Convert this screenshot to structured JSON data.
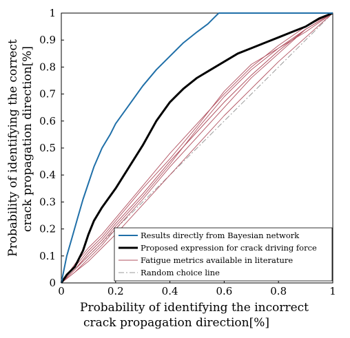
{
  "chart_data": {
    "type": "line",
    "title": "",
    "xlabel_lines": [
      "Probability of identifying the incorrect",
      "crack propagation direction[%]"
    ],
    "ylabel_lines": [
      "Probability of identifying the correct",
      "crack propagation direction[%]"
    ],
    "xlim": [
      0,
      1
    ],
    "ylim": [
      0,
      1
    ],
    "x_ticks": [
      "0",
      "0.2",
      "0.4",
      "0.6",
      "0.8",
      "1"
    ],
    "y_ticks": [
      "0",
      "0.1",
      "0.2",
      "0.3",
      "0.4",
      "0.5",
      "0.6",
      "0.7",
      "0.8",
      "0.9",
      "1"
    ],
    "grid": false,
    "legend_position": "bottom-right",
    "series": [
      {
        "name": "Results directly from Bayesian network",
        "color": "#1f6fa8",
        "style": "solid",
        "x": [
          0,
          0.01,
          0.02,
          0.04,
          0.06,
          0.08,
          0.1,
          0.12,
          0.15,
          0.18,
          0.2,
          0.25,
          0.3,
          0.35,
          0.4,
          0.45,
          0.5,
          0.54,
          0.56,
          0.58,
          0.6,
          0.8,
          1.0
        ],
        "y": [
          0,
          0.05,
          0.1,
          0.17,
          0.24,
          0.31,
          0.37,
          0.43,
          0.5,
          0.55,
          0.59,
          0.66,
          0.73,
          0.79,
          0.84,
          0.89,
          0.93,
          0.96,
          0.98,
          1.0,
          1.0,
          1.0,
          1.0
        ]
      },
      {
        "name": "Proposed expression for crack driving force",
        "color": "#000000",
        "style": "solid",
        "x": [
          0,
          0.02,
          0.05,
          0.08,
          0.1,
          0.12,
          0.15,
          0.2,
          0.25,
          0.3,
          0.35,
          0.4,
          0.45,
          0.5,
          0.55,
          0.6,
          0.65,
          0.7,
          0.75,
          0.8,
          0.85,
          0.9,
          0.95,
          1.0
        ],
        "y": [
          0,
          0.03,
          0.06,
          0.12,
          0.18,
          0.23,
          0.28,
          0.35,
          0.43,
          0.51,
          0.6,
          0.67,
          0.72,
          0.76,
          0.79,
          0.82,
          0.85,
          0.87,
          0.89,
          0.91,
          0.93,
          0.95,
          0.98,
          1.0
        ]
      },
      {
        "name": "Fatigue metrics available in literature",
        "color": "#b0505f",
        "style": "solid",
        "x": [
          0,
          0.05,
          0.1,
          0.15,
          0.2,
          0.3,
          0.4,
          0.5,
          0.6,
          0.7,
          0.8,
          0.9,
          1.0
        ],
        "y": [
          0,
          0.05,
          0.11,
          0.16,
          0.22,
          0.33,
          0.45,
          0.56,
          0.67,
          0.77,
          0.86,
          0.94,
          1.0
        ],
        "variants": [
          {
            "x": [
              0,
              0.05,
              0.1,
              0.15,
              0.2,
              0.3,
              0.4,
              0.5,
              0.6,
              0.7,
              0.8,
              0.9,
              1.0
            ],
            "y": [
              0,
              0.07,
              0.13,
              0.18,
              0.24,
              0.36,
              0.48,
              0.59,
              0.7,
              0.8,
              0.88,
              0.95,
              1.0
            ]
          },
          {
            "x": [
              0,
              0.05,
              0.1,
              0.15,
              0.2,
              0.3,
              0.4,
              0.5,
              0.6,
              0.7,
              0.8,
              0.9,
              1.0
            ],
            "y": [
              0,
              0.04,
              0.09,
              0.14,
              0.2,
              0.31,
              0.43,
              0.54,
              0.65,
              0.76,
              0.85,
              0.94,
              1.0
            ]
          },
          {
            "x": [
              0,
              0.05,
              0.1,
              0.15,
              0.2,
              0.3,
              0.4,
              0.5,
              0.6,
              0.7,
              0.8,
              0.9,
              1.0
            ],
            "y": [
              0,
              0.06,
              0.12,
              0.17,
              0.23,
              0.35,
              0.46,
              0.58,
              0.71,
              0.81,
              0.87,
              0.93,
              1.0
            ]
          },
          {
            "x": [
              0,
              0.05,
              0.1,
              0.15,
              0.2,
              0.3,
              0.4,
              0.5,
              0.6,
              0.7,
              0.8,
              0.9,
              1.0
            ],
            "y": [
              0,
              0.05,
              0.1,
              0.15,
              0.21,
              0.32,
              0.44,
              0.57,
              0.69,
              0.79,
              0.87,
              0.94,
              1.0
            ]
          },
          {
            "x": [
              0,
              0.05,
              0.1,
              0.15,
              0.2,
              0.3,
              0.4,
              0.5,
              0.6,
              0.7,
              0.8,
              0.9,
              1.0
            ],
            "y": [
              0,
              0.04,
              0.08,
              0.13,
              0.18,
              0.29,
              0.4,
              0.51,
              0.62,
              0.72,
              0.82,
              0.91,
              1.0
            ]
          }
        ]
      },
      {
        "name": "Random choice line",
        "color": "#9a9a9a",
        "style": "dash-dot",
        "x": [
          0,
          1
        ],
        "y": [
          0,
          1
        ]
      }
    ]
  }
}
